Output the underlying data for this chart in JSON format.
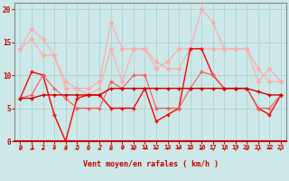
{
  "x": [
    0,
    1,
    2,
    3,
    4,
    5,
    6,
    7,
    8,
    9,
    10,
    11,
    12,
    13,
    14,
    15,
    16,
    17,
    18,
    19,
    20,
    21,
    22,
    23
  ],
  "series_light1": [
    14,
    17,
    15.5,
    13,
    8,
    8,
    8,
    9,
    18,
    14,
    14,
    14,
    11,
    12,
    14,
    14,
    20,
    18,
    14,
    14,
    14,
    11,
    9,
    9
  ],
  "series_light2": [
    14,
    15.5,
    13,
    13,
    9,
    8,
    7,
    8,
    14,
    9,
    14,
    14,
    12,
    11,
    11,
    14,
    14,
    14,
    14,
    14,
    14,
    9,
    11,
    9
  ],
  "series_med1": [
    6.5,
    10.5,
    10,
    4,
    0,
    6.5,
    7,
    7,
    5,
    5,
    5,
    8,
    3,
    4,
    5,
    14,
    14,
    10,
    8,
    8,
    8,
    5,
    4,
    7
  ],
  "series_med2": [
    6.5,
    7,
    10,
    8,
    6.5,
    5,
    5,
    5,
    9,
    8,
    10,
    10,
    5,
    5,
    5,
    8,
    10.5,
    10,
    8,
    8,
    8,
    5,
    5,
    7
  ],
  "series_dark": [
    6.5,
    6.5,
    7,
    7,
    7,
    7,
    7,
    7,
    8,
    8,
    8,
    8,
    8,
    8,
    8,
    8,
    8,
    8,
    8,
    8,
    8,
    7.5,
    7,
    7
  ],
  "arrows_dir": [
    225,
    225,
    225,
    180,
    135,
    135,
    135,
    135,
    135,
    180,
    135,
    180,
    180,
    180,
    180,
    180,
    225,
    315,
    315,
    315,
    270,
    315,
    180,
    45
  ],
  "bg_color": "#cce8e8",
  "grid_color": "#aacccc",
  "color_light": "#ffaaaa",
  "color_medium": "#ff5555",
  "color_dark": "#cc0000",
  "color_bright": "#ff0000",
  "xlabel": "Vent moyen/en rafales ( km/h )",
  "ylim": [
    0,
    21
  ],
  "yticks": [
    0,
    5,
    10,
    15,
    20
  ],
  "xticks": [
    0,
    1,
    2,
    3,
    4,
    5,
    6,
    7,
    8,
    9,
    10,
    11,
    12,
    13,
    14,
    15,
    16,
    17,
    18,
    19,
    20,
    21,
    22,
    23
  ]
}
